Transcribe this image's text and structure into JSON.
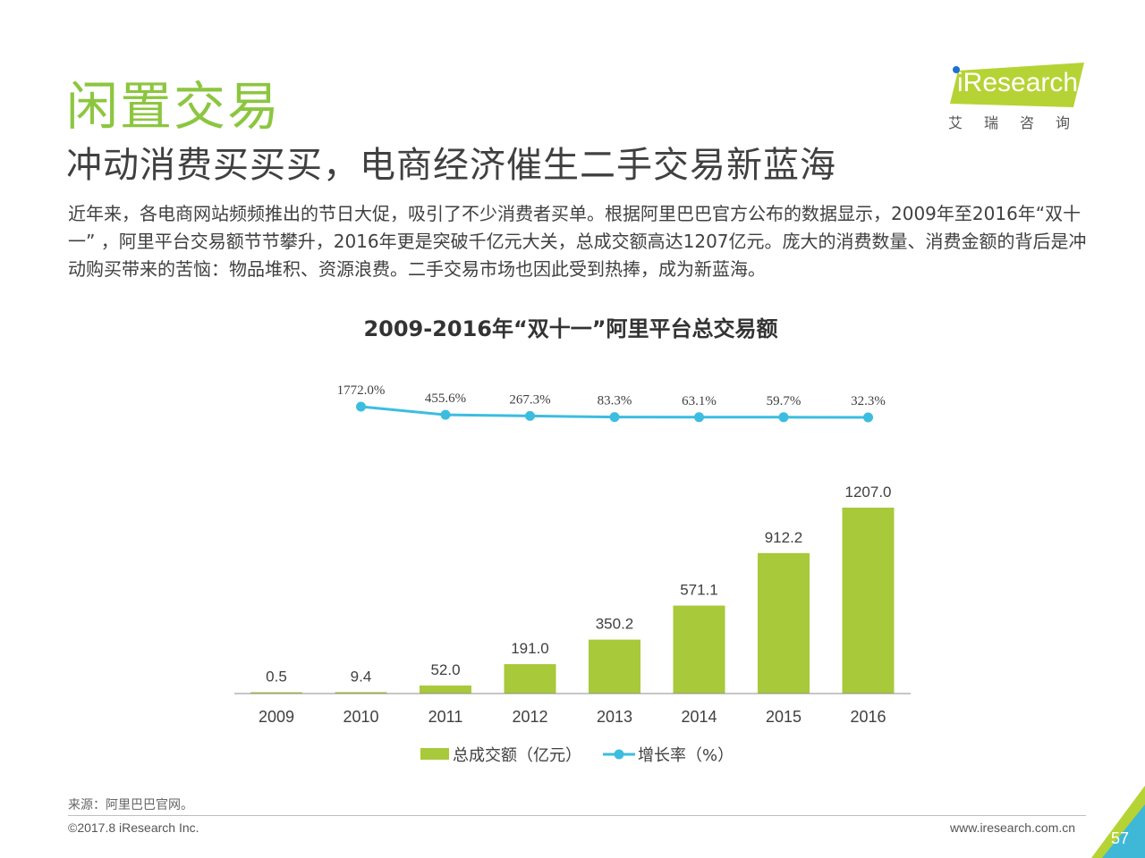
{
  "header": {
    "title": "闲置交易",
    "subtitle": "冲动消费买买买，电商经济催生二手交易新蓝海",
    "paragraph": "近年来，各电商网站频频推出的节日大促，吸引了不少消费者买单。根据阿里巴巴官方公布的数据显示，2009年至2016年“双十一” ，阿里平台交易额节节攀升，2016年更是突破千亿元大关，总成交额高达1207亿元。庞大的消费数量、消费金额的背后是冲动购买带来的苦恼：物品堆积、资源浪费。二手交易市场也因此受到热捧，成为新蓝海。"
  },
  "logo": {
    "brand": "iResearch",
    "cn": "艾瑞咨询"
  },
  "chart_data": {
    "type": "bar",
    "title": "2009-2016年“双十一”阿里平台总交易额",
    "categories": [
      "2009",
      "2010",
      "2011",
      "2012",
      "2013",
      "2014",
      "2015",
      "2016"
    ],
    "series": [
      {
        "name": "总成交额（亿元）",
        "type": "bar",
        "values": [
          0.5,
          9.4,
          52.0,
          191.0,
          350.2,
          571.1,
          912.2,
          1207.0
        ],
        "labels": [
          "0.5",
          "9.4",
          "52.0",
          "191.0",
          "350.2",
          "571.1",
          "912.2",
          "1207.0"
        ],
        "color": "#a8c93a"
      },
      {
        "name": "增长率（%）",
        "type": "line",
        "x": [
          "2010",
          "2011",
          "2012",
          "2013",
          "2014",
          "2015",
          "2016"
        ],
        "values": [
          1772.0,
          455.6,
          267.3,
          83.3,
          63.1,
          59.7,
          32.3
        ],
        "labels": [
          "1772.0%",
          "455.6%",
          "267.3%",
          "83.3%",
          "63.1%",
          "59.7%",
          "32.3%"
        ],
        "color": "#3cbde0"
      }
    ],
    "legend_position": "bottom"
  },
  "footer": {
    "source": "来源：阿里巴巴官网。",
    "copyright": "©2017.8 iResearch Inc.",
    "website": "www.iresearch.com.cn",
    "page_number": "57"
  }
}
